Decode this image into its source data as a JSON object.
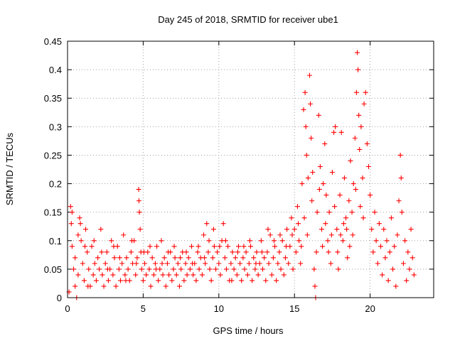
{
  "chart_data": {
    "type": "scatter",
    "title": "Day 245 of 2018, SRMTID for receiver ube1",
    "xlabel": "GPS time / hours",
    "ylabel": "SRMTID / TECUs",
    "xlim": [
      0,
      24.2
    ],
    "ylim": [
      0,
      0.45
    ],
    "x_ticks": [
      0,
      5,
      10,
      15,
      20
    ],
    "x_tick_labels": [
      "0",
      "5",
      "10",
      "15",
      "20"
    ],
    "y_ticks": [
      0,
      0.05,
      0.1,
      0.15,
      0.2,
      0.25,
      0.3,
      0.35,
      0.4,
      0.45
    ],
    "y_tick_labels": [
      "0",
      "0.05",
      "0.1",
      "0.15",
      "0.2",
      "0.25",
      "0.3",
      "0.35",
      "0.4",
      "0.45"
    ],
    "grid": true,
    "marker": "+",
    "color": "#ff0000",
    "series": [
      {
        "name": "SRMTID",
        "points": [
          [
            0.1,
            0.01
          ],
          [
            0.2,
            0.16
          ],
          [
            0.25,
            0.13
          ],
          [
            0.3,
            0.15
          ],
          [
            0.4,
            0.05
          ],
          [
            0.5,
            0.02
          ],
          [
            0.6,
            0.0
          ],
          [
            0.7,
            0.04
          ],
          [
            0.8,
            0.14
          ],
          [
            0.85,
            0.13
          ],
          [
            0.9,
            0.1
          ],
          [
            1.0,
            0.06
          ],
          [
            1.1,
            0.03
          ],
          [
            1.2,
            0.12
          ],
          [
            1.3,
            0.08
          ],
          [
            1.4,
            0.05
          ],
          [
            1.5,
            0.02
          ],
          [
            1.6,
            0.09
          ],
          [
            1.7,
            0.04
          ],
          [
            1.8,
            0.06
          ],
          [
            1.9,
            0.03
          ],
          [
            2.0,
            0.07
          ],
          [
            2.1,
            0.05
          ],
          [
            2.2,
            0.12
          ],
          [
            2.3,
            0.04
          ],
          [
            2.4,
            0.02
          ],
          [
            2.5,
            0.06
          ],
          [
            2.6,
            0.08
          ],
          [
            2.7,
            0.03
          ],
          [
            2.8,
            0.05
          ],
          [
            2.9,
            0.1
          ],
          [
            3.0,
            0.04
          ],
          [
            3.1,
            0.07
          ],
          [
            3.2,
            0.02
          ],
          [
            3.3,
            0.09
          ],
          [
            3.4,
            0.05
          ],
          [
            3.5,
            0.03
          ],
          [
            3.6,
            0.06
          ],
          [
            3.7,
            0.11
          ],
          [
            3.8,
            0.04
          ],
          [
            3.9,
            0.07
          ],
          [
            4.0,
            0.05
          ],
          [
            4.1,
            0.03
          ],
          [
            4.2,
            0.08
          ],
          [
            4.3,
            0.06
          ],
          [
            4.4,
            0.1
          ],
          [
            4.5,
            0.04
          ],
          [
            4.6,
            0.07
          ],
          [
            4.7,
            0.19
          ],
          [
            4.72,
            0.17
          ],
          [
            4.75,
            0.15
          ],
          [
            4.8,
            0.12
          ],
          [
            4.85,
            0.08
          ],
          [
            4.9,
            0.05
          ],
          [
            5.0,
            0.03
          ],
          [
            5.1,
            0.06
          ],
          [
            5.2,
            0.04
          ],
          [
            5.3,
            0.08
          ],
          [
            5.4,
            0.05
          ],
          [
            5.5,
            0.02
          ],
          [
            5.6,
            0.07
          ],
          [
            5.7,
            0.04
          ],
          [
            5.8,
            0.06
          ],
          [
            5.9,
            0.09
          ],
          [
            6.0,
            0.03
          ],
          [
            6.1,
            0.05
          ],
          [
            6.2,
            0.1
          ],
          [
            6.3,
            0.04
          ],
          [
            6.4,
            0.07
          ],
          [
            6.5,
            0.02
          ],
          [
            6.6,
            0.06
          ],
          [
            6.7,
            0.04
          ],
          [
            6.8,
            0.08
          ],
          [
            6.9,
            0.03
          ],
          [
            7.0,
            0.05
          ],
          [
            7.1,
            0.07
          ],
          [
            7.2,
            0.04
          ],
          [
            7.3,
            0.06
          ],
          [
            7.4,
            0.02
          ],
          [
            7.5,
            0.05
          ],
          [
            7.6,
            0.08
          ],
          [
            7.7,
            0.03
          ],
          [
            7.8,
            0.06
          ],
          [
            7.9,
            0.04
          ],
          [
            8.0,
            0.07
          ],
          [
            8.1,
            0.05
          ],
          [
            8.2,
            0.09
          ],
          [
            8.3,
            0.04
          ],
          [
            8.4,
            0.06
          ],
          [
            8.5,
            0.03
          ],
          [
            8.6,
            0.08
          ],
          [
            8.7,
            0.05
          ],
          [
            8.8,
            0.07
          ],
          [
            8.9,
            0.04
          ],
          [
            9.0,
            0.11
          ],
          [
            9.1,
            0.06
          ],
          [
            9.2,
            0.13
          ],
          [
            9.3,
            0.08
          ],
          [
            9.4,
            0.05
          ],
          [
            9.5,
            0.03
          ],
          [
            9.6,
            0.07
          ],
          [
            9.7,
            0.09
          ],
          [
            9.8,
            0.05
          ],
          [
            9.9,
            0.08
          ],
          [
            10.0,
            0.06
          ],
          [
            10.1,
            0.04
          ],
          [
            10.2,
            0.1
          ],
          [
            10.3,
            0.13
          ],
          [
            10.4,
            0.07
          ],
          [
            10.5,
            0.05
          ],
          [
            10.6,
            0.09
          ],
          [
            10.7,
            0.03
          ],
          [
            10.8,
            0.06
          ],
          [
            10.9,
            0.08
          ],
          [
            11.0,
            0.05
          ],
          [
            11.1,
            0.07
          ],
          [
            11.2,
            0.04
          ],
          [
            11.3,
            0.09
          ],
          [
            11.4,
            0.06
          ],
          [
            11.5,
            0.03
          ],
          [
            11.6,
            0.07
          ],
          [
            11.7,
            0.05
          ],
          [
            11.8,
            0.08
          ],
          [
            11.9,
            0.04
          ],
          [
            12.0,
            0.06
          ],
          [
            12.1,
            0.09
          ],
          [
            12.2,
            0.03
          ],
          [
            12.3,
            0.07
          ],
          [
            12.4,
            0.05
          ],
          [
            12.5,
            0.08
          ],
          [
            12.6,
            0.04
          ],
          [
            12.7,
            0.06
          ],
          [
            12.8,
            0.1
          ],
          [
            12.9,
            0.05
          ],
          [
            13.0,
            0.07
          ],
          [
            13.1,
            0.03
          ],
          [
            13.2,
            0.08
          ],
          [
            13.3,
            0.06
          ],
          [
            13.4,
            0.11
          ],
          [
            13.5,
            0.04
          ],
          [
            13.6,
            0.07
          ],
          [
            13.7,
            0.09
          ],
          [
            13.8,
            0.03
          ],
          [
            13.9,
            0.06
          ],
          [
            14.0,
            0.08
          ],
          [
            14.1,
            0.05
          ],
          [
            14.2,
            0.1
          ],
          [
            14.3,
            0.04
          ],
          [
            14.4,
            0.07
          ],
          [
            14.5,
            0.12
          ],
          [
            14.6,
            0.06
          ],
          [
            14.7,
            0.09
          ],
          [
            14.8,
            0.14
          ],
          [
            14.9,
            0.05
          ],
          [
            15.0,
            0.12
          ],
          [
            15.1,
            0.08
          ],
          [
            15.2,
            0.16
          ],
          [
            15.3,
            0.1
          ],
          [
            15.4,
            0.06
          ],
          [
            15.5,
            0.2
          ],
          [
            15.6,
            0.33
          ],
          [
            15.7,
            0.36
          ],
          [
            15.75,
            0.3
          ],
          [
            15.8,
            0.25
          ],
          [
            15.9,
            0.21
          ],
          [
            16.0,
            0.39
          ],
          [
            16.05,
            0.34
          ],
          [
            16.1,
            0.28
          ],
          [
            16.2,
            0.22
          ],
          [
            16.3,
            0.05
          ],
          [
            16.35,
            0.02
          ],
          [
            16.4,
            0.0
          ],
          [
            16.5,
            0.15
          ],
          [
            16.6,
            0.32
          ],
          [
            16.7,
            0.23
          ],
          [
            16.8,
            0.12
          ],
          [
            16.9,
            0.2
          ],
          [
            17.0,
            0.27
          ],
          [
            17.1,
            0.18
          ],
          [
            17.2,
            0.1
          ],
          [
            17.3,
            0.15
          ],
          [
            17.4,
            0.06
          ],
          [
            17.5,
            0.22
          ],
          [
            17.6,
            0.29
          ],
          [
            17.7,
            0.3
          ],
          [
            17.8,
            0.12
          ],
          [
            17.9,
            0.05
          ],
          [
            18.0,
            0.18
          ],
          [
            18.1,
            0.29
          ],
          [
            18.2,
            0.1
          ],
          [
            18.3,
            0.21
          ],
          [
            18.4,
            0.14
          ],
          [
            18.5,
            0.07
          ],
          [
            18.6,
            0.17
          ],
          [
            18.7,
            0.24
          ],
          [
            18.8,
            0.15
          ],
          [
            18.9,
            0.2
          ],
          [
            19.0,
            0.28
          ],
          [
            19.1,
            0.36
          ],
          [
            19.15,
            0.43
          ],
          [
            19.2,
            0.4
          ],
          [
            19.25,
            0.32
          ],
          [
            19.3,
            0.26
          ],
          [
            19.4,
            0.3
          ],
          [
            19.5,
            0.21
          ],
          [
            19.6,
            0.34
          ],
          [
            19.7,
            0.36
          ],
          [
            19.8,
            0.27
          ],
          [
            19.9,
            0.23
          ],
          [
            20.0,
            0.18
          ],
          [
            20.1,
            0.12
          ],
          [
            20.2,
            0.08
          ],
          [
            20.3,
            0.15
          ],
          [
            20.4,
            0.1
          ],
          [
            20.5,
            0.06
          ],
          [
            20.6,
            0.13
          ],
          [
            20.7,
            0.09
          ],
          [
            20.8,
            0.04
          ],
          [
            20.9,
            0.12
          ],
          [
            21.0,
            0.07
          ],
          [
            21.1,
            0.1
          ],
          [
            21.2,
            0.03
          ],
          [
            21.3,
            0.08
          ],
          [
            21.4,
            0.14
          ],
          [
            21.5,
            0.05
          ],
          [
            21.6,
            0.09
          ],
          [
            21.7,
            0.02
          ],
          [
            21.8,
            0.11
          ],
          [
            21.9,
            0.17
          ],
          [
            22.0,
            0.25
          ],
          [
            22.05,
            0.21
          ],
          [
            22.1,
            0.15
          ],
          [
            22.2,
            0.06
          ],
          [
            22.3,
            0.1
          ],
          [
            22.4,
            0.03
          ],
          [
            22.5,
            0.08
          ],
          [
            22.6,
            0.05
          ],
          [
            22.7,
            0.12
          ],
          [
            22.8,
            0.07
          ],
          [
            22.9,
            0.04
          ],
          [
            0.3,
            0.09
          ],
          [
            0.5,
            0.07
          ],
          [
            0.7,
            0.11
          ],
          [
            1.15,
            0.09
          ],
          [
            1.35,
            0.02
          ],
          [
            1.75,
            0.1
          ],
          [
            2.25,
            0.08
          ],
          [
            2.65,
            0.05
          ],
          [
            3.05,
            0.09
          ],
          [
            3.45,
            0.07
          ],
          [
            3.85,
            0.03
          ],
          [
            4.25,
            0.1
          ],
          [
            4.55,
            0.06
          ],
          [
            5.05,
            0.08
          ],
          [
            5.45,
            0.09
          ],
          [
            5.85,
            0.05
          ],
          [
            6.25,
            0.06
          ],
          [
            6.65,
            0.08
          ],
          [
            7.05,
            0.09
          ],
          [
            7.45,
            0.07
          ],
          [
            7.85,
            0.08
          ],
          [
            8.25,
            0.06
          ],
          [
            8.65,
            0.09
          ],
          [
            9.05,
            0.07
          ],
          [
            9.35,
            0.1
          ],
          [
            9.65,
            0.12
          ],
          [
            10.05,
            0.09
          ],
          [
            10.45,
            0.1
          ],
          [
            10.85,
            0.03
          ],
          [
            11.25,
            0.08
          ],
          [
            11.65,
            0.09
          ],
          [
            12.05,
            0.1
          ],
          [
            12.45,
            0.06
          ],
          [
            12.85,
            0.08
          ],
          [
            13.25,
            0.12
          ],
          [
            13.65,
            0.1
          ],
          [
            14.05,
            0.11
          ],
          [
            14.45,
            0.09
          ],
          [
            14.85,
            0.11
          ],
          [
            15.25,
            0.13
          ],
          [
            15.45,
            0.09
          ],
          [
            15.65,
            0.14
          ],
          [
            15.85,
            0.11
          ],
          [
            16.15,
            0.17
          ],
          [
            16.45,
            0.08
          ],
          [
            16.65,
            0.19
          ],
          [
            16.85,
            0.09
          ],
          [
            17.05,
            0.13
          ],
          [
            17.25,
            0.08
          ],
          [
            17.45,
            0.11
          ],
          [
            17.65,
            0.16
          ],
          [
            17.85,
            0.08
          ],
          [
            18.05,
            0.11
          ],
          [
            18.25,
            0.13
          ],
          [
            18.45,
            0.12
          ],
          [
            18.65,
            0.09
          ],
          [
            18.85,
            0.11
          ],
          [
            19.05,
            0.19
          ],
          [
            19.35,
            0.16
          ],
          [
            19.55,
            0.14
          ]
        ]
      }
    ]
  }
}
